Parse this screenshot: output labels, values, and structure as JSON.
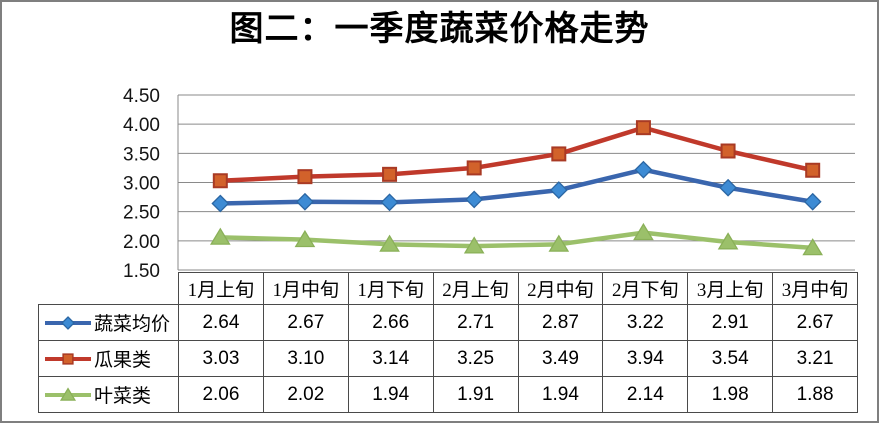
{
  "frame": {
    "border_color": "#7f7f7f",
    "background": "#ffffff"
  },
  "chart_data": {
    "type": "line",
    "title": "图二：一季度蔬菜价格走势",
    "categories": [
      "1月上旬",
      "1月中旬",
      "1月下旬",
      "2月上旬",
      "2月中旬",
      "2月下旬",
      "3月上旬",
      "3月中旬"
    ],
    "series": [
      {
        "name": "蔬菜均价",
        "marker": "diamond",
        "line_color": "#3a66ae",
        "marker_fill": "#3d8bd4",
        "marker_stroke": "#2b66a3",
        "values": [
          2.64,
          2.67,
          2.66,
          2.71,
          2.87,
          3.22,
          2.91,
          2.67
        ]
      },
      {
        "name": "瓜果类",
        "marker": "square",
        "line_color": "#c0392b",
        "marker_fill": "#d2622b",
        "marker_stroke": "#a93a24",
        "values": [
          3.03,
          3.1,
          3.14,
          3.25,
          3.49,
          3.94,
          3.54,
          3.21
        ]
      },
      {
        "name": "叶菜类",
        "marker": "triangle",
        "line_color": "#9bc06a",
        "marker_fill": "#9bc06a",
        "marker_stroke": "#8ab058",
        "values": [
          2.06,
          2.02,
          1.94,
          1.91,
          1.94,
          2.14,
          1.98,
          1.88
        ]
      }
    ],
    "ylim": [
      1.5,
      4.5
    ],
    "yticks": [
      "4.50",
      "4.00",
      "3.50",
      "3.00",
      "2.50",
      "2.00",
      "1.50"
    ],
    "value_format": "0.00",
    "grid": "horizontal",
    "grid_color": "#8a8a8a",
    "axis_color": "#8a8a8a",
    "table_border_color": "#4a4a4a",
    "legend_position": "table-left"
  }
}
